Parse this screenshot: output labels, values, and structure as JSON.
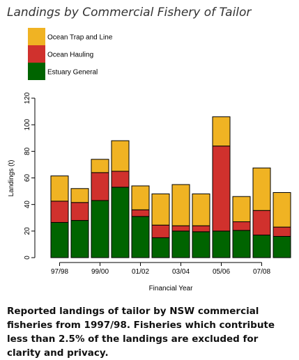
{
  "chart_data": {
    "type": "bar",
    "stacked": true,
    "title": "Landings by Commercial Fishery of Tailor",
    "xlabel": "Financial Year",
    "ylabel": "Landings (t)",
    "ylim": [
      0,
      120
    ],
    "yticks": [
      0,
      20,
      40,
      60,
      80,
      100,
      120
    ],
    "x_tick_labels": [
      "97/98",
      "99/00",
      "01/02",
      "03/04",
      "05/06",
      "07/08"
    ],
    "x_tick_positions": [
      0,
      2,
      4,
      6,
      8,
      10
    ],
    "categories": [
      "97/98",
      "98/99",
      "99/00",
      "00/01",
      "01/02",
      "02/03",
      "03/04",
      "04/05",
      "05/06",
      "06/07",
      "07/08",
      "08/09"
    ],
    "series": [
      {
        "name": "Estuary General",
        "color": "#006400",
        "values": [
          26.5,
          28,
          43,
          53,
          31,
          15,
          20,
          19.5,
          20,
          20.5,
          17,
          16
        ]
      },
      {
        "name": "Ocean Hauling",
        "color": "#D0312D",
        "values": [
          16,
          13.5,
          21,
          12,
          5,
          9.5,
          4,
          4.5,
          64,
          6.5,
          18.5,
          7
        ]
      },
      {
        "name": "Ocean Trap and Line",
        "color": "#F0B323",
        "values": [
          19,
          10.5,
          10,
          23,
          18,
          23.5,
          31,
          24,
          22,
          19,
          32,
          26
        ]
      }
    ],
    "legend_order": [
      "Ocean Trap and Line",
      "Ocean Hauling",
      "Estuary General"
    ],
    "legend_position": "top-left",
    "grid": false
  },
  "caption": "Reported landings of tailor by NSW commercial fisheries from 1997/98. Fisheries which contribute less than 2.5% of the landings are excluded for clarity and privacy."
}
